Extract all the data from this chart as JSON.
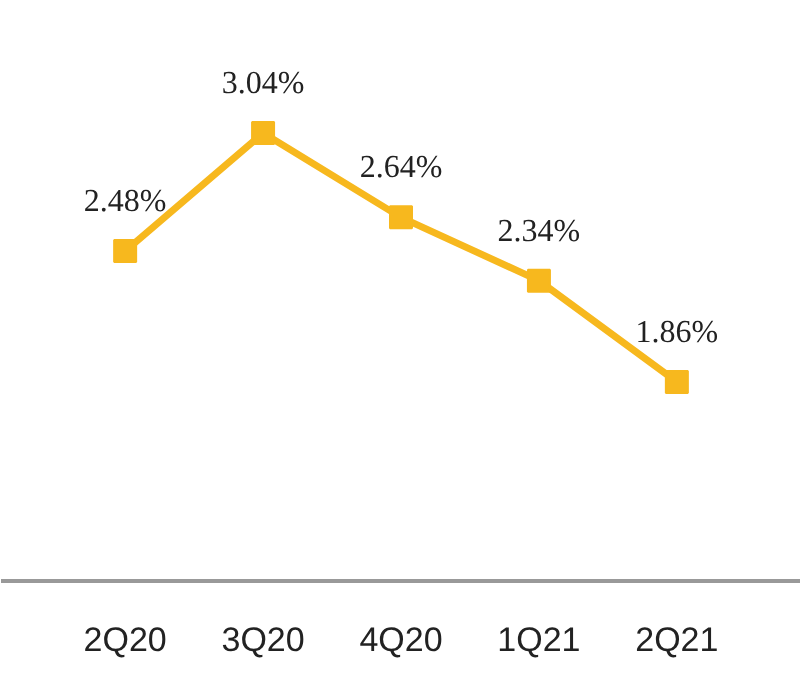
{
  "chart_data": {
    "type": "line",
    "categories": [
      "2Q20",
      "3Q20",
      "4Q20",
      "1Q21",
      "2Q21"
    ],
    "series": [
      {
        "color": "#f7b81e",
        "values": [
          2.48,
          3.04,
          2.64,
          2.34,
          1.86
        ],
        "value_labels": [
          "2.48%",
          "3.04%",
          "2.64%",
          "2.34%",
          "1.86%"
        ]
      }
    ],
    "marker": "square",
    "line_style": "solid",
    "tick_labels": "x"
  }
}
